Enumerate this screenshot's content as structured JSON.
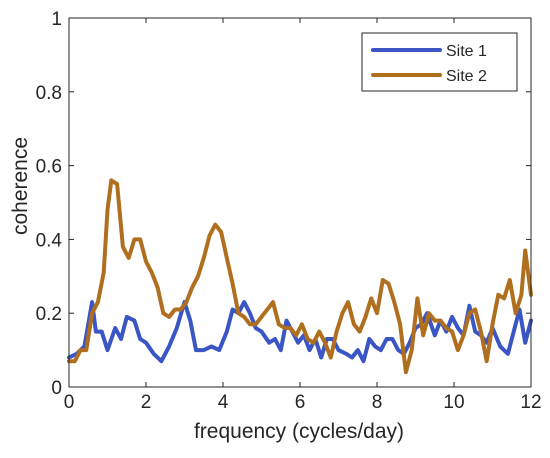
{
  "chart_data": {
    "type": "line",
    "xlabel": "frequency (cycles/day)",
    "ylabel": "coherence",
    "xlim": [
      0,
      12
    ],
    "ylim": [
      0,
      1
    ],
    "xticks": [
      0,
      2,
      4,
      6,
      8,
      10,
      12
    ],
    "yticks": [
      0,
      0.2,
      0.4,
      0.6,
      0.8,
      1
    ],
    "xtick_labels": [
      "0",
      "2",
      "4",
      "6",
      "8",
      "10",
      "12"
    ],
    "ytick_labels": [
      "0",
      "0.2",
      "0.4",
      "0.6",
      "0.8",
      "1"
    ],
    "grid": false,
    "legend_position": "top-right",
    "series": [
      {
        "name": "Site 1",
        "color": "#3a55c4",
        "x": [
          0,
          0.2,
          0.4,
          0.6,
          0.7,
          0.85,
          1.0,
          1.2,
          1.35,
          1.5,
          1.7,
          1.85,
          2.0,
          2.2,
          2.4,
          2.6,
          2.8,
          3.0,
          3.15,
          3.3,
          3.5,
          3.7,
          3.9,
          4.1,
          4.25,
          4.4,
          4.55,
          4.7,
          4.85,
          5.0,
          5.2,
          5.35,
          5.5,
          5.65,
          5.8,
          5.95,
          6.1,
          6.25,
          6.4,
          6.55,
          6.7,
          6.85,
          7.0,
          7.2,
          7.35,
          7.5,
          7.65,
          7.8,
          7.95,
          8.1,
          8.25,
          8.4,
          8.55,
          8.7,
          8.85,
          9.0,
          9.15,
          9.3,
          9.5,
          9.65,
          9.8,
          9.95,
          10.1,
          10.25,
          10.4,
          10.55,
          10.7,
          10.85,
          11.0,
          11.2,
          11.4,
          11.55,
          11.7,
          11.85,
          12.0
        ],
        "y": [
          0.08,
          0.09,
          0.11,
          0.23,
          0.15,
          0.15,
          0.1,
          0.16,
          0.13,
          0.19,
          0.18,
          0.13,
          0.12,
          0.09,
          0.07,
          0.11,
          0.16,
          0.23,
          0.18,
          0.1,
          0.1,
          0.11,
          0.1,
          0.15,
          0.21,
          0.2,
          0.23,
          0.2,
          0.16,
          0.15,
          0.12,
          0.13,
          0.1,
          0.18,
          0.15,
          0.12,
          0.14,
          0.1,
          0.13,
          0.08,
          0.13,
          0.13,
          0.1,
          0.09,
          0.08,
          0.1,
          0.07,
          0.13,
          0.11,
          0.1,
          0.13,
          0.13,
          0.1,
          0.09,
          0.12,
          0.16,
          0.17,
          0.2,
          0.14,
          0.18,
          0.15,
          0.19,
          0.16,
          0.14,
          0.22,
          0.15,
          0.14,
          0.12,
          0.16,
          0.11,
          0.09,
          0.15,
          0.21,
          0.12,
          0.18
        ]
      },
      {
        "name": "Site 2",
        "color": "#b06f1f",
        "x": [
          0,
          0.15,
          0.3,
          0.45,
          0.6,
          0.75,
          0.9,
          1.0,
          1.1,
          1.25,
          1.4,
          1.55,
          1.7,
          1.85,
          2.0,
          2.15,
          2.3,
          2.45,
          2.6,
          2.75,
          2.9,
          3.05,
          3.2,
          3.35,
          3.5,
          3.65,
          3.8,
          3.95,
          4.1,
          4.25,
          4.4,
          4.55,
          4.7,
          4.85,
          5.0,
          5.15,
          5.3,
          5.45,
          5.6,
          5.75,
          5.9,
          6.05,
          6.2,
          6.35,
          6.5,
          6.65,
          6.8,
          6.95,
          7.1,
          7.25,
          7.4,
          7.55,
          7.7,
          7.85,
          8.0,
          8.15,
          8.3,
          8.45,
          8.6,
          8.75,
          8.9,
          9.05,
          9.2,
          9.35,
          9.5,
          9.65,
          9.8,
          9.95,
          10.1,
          10.25,
          10.4,
          10.55,
          10.7,
          10.85,
          11.0,
          11.15,
          11.3,
          11.45,
          11.6,
          11.75,
          11.85,
          12.0
        ],
        "y": [
          0.07,
          0.07,
          0.1,
          0.1,
          0.2,
          0.23,
          0.31,
          0.48,
          0.56,
          0.55,
          0.38,
          0.35,
          0.4,
          0.4,
          0.34,
          0.31,
          0.27,
          0.2,
          0.19,
          0.21,
          0.21,
          0.23,
          0.27,
          0.3,
          0.35,
          0.41,
          0.44,
          0.42,
          0.35,
          0.28,
          0.2,
          0.19,
          0.17,
          0.17,
          0.19,
          0.21,
          0.23,
          0.17,
          0.16,
          0.16,
          0.14,
          0.17,
          0.13,
          0.12,
          0.15,
          0.12,
          0.08,
          0.15,
          0.2,
          0.23,
          0.17,
          0.15,
          0.19,
          0.24,
          0.2,
          0.29,
          0.28,
          0.23,
          0.17,
          0.04,
          0.1,
          0.24,
          0.14,
          0.2,
          0.18,
          0.18,
          0.16,
          0.15,
          0.1,
          0.14,
          0.2,
          0.21,
          0.15,
          0.07,
          0.17,
          0.25,
          0.24,
          0.29,
          0.2,
          0.25,
          0.37,
          0.25
        ]
      }
    ]
  }
}
